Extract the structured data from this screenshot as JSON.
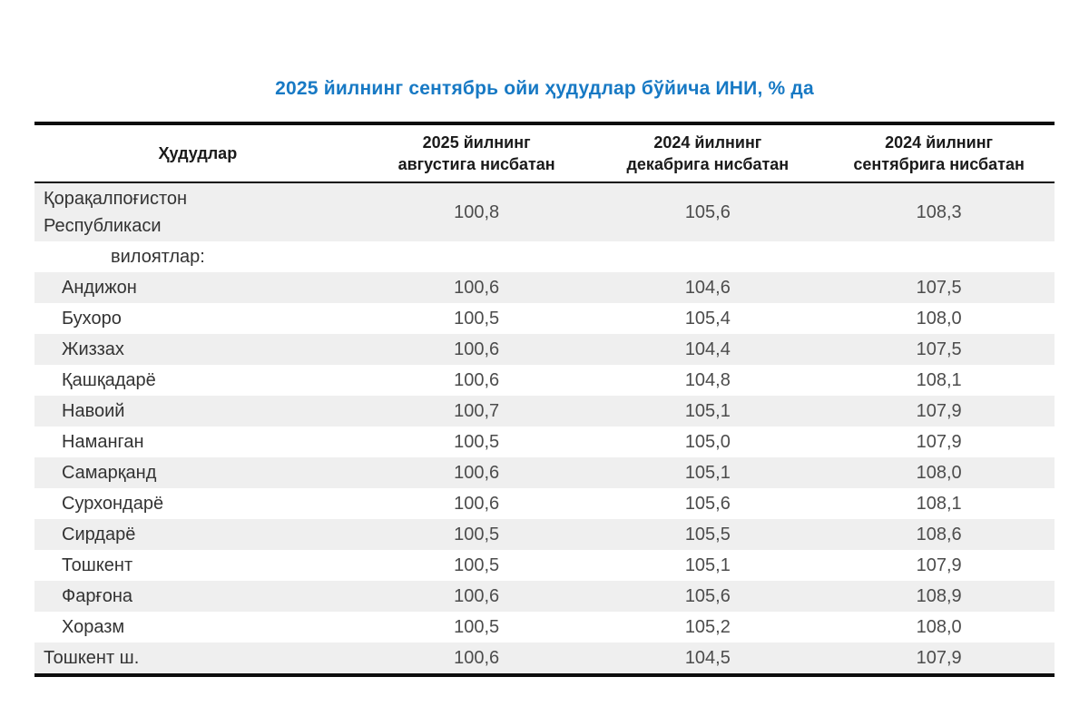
{
  "colors": {
    "title": "#1779c4",
    "stripe": "#efefef",
    "border": "#0d0d0d",
    "region_text": "#333333",
    "value_text": "#4c4c4c"
  },
  "chart_data": {
    "type": "table",
    "title": "2025 йилнинг сентябрь ойи ҳудудлар бўйича ИНИ, % да",
    "columns": [
      "Ҳудудлар",
      "2025 йилнинг августига нисбатан",
      "2024 йилнинг декабрига нисбатан",
      "2024 йилнинг сентябрига нисбатан"
    ],
    "rows": [
      {
        "name": "Қорақалпоғистон\nРеспубликаси",
        "style": "flush",
        "values": [
          "100,8",
          "105,6",
          "108,3"
        ]
      },
      {
        "name": "вилоятлар:",
        "style": "subheader",
        "values": [
          "",
          "",
          ""
        ]
      },
      {
        "name": "Андижон",
        "style": "indent",
        "values": [
          "100,6",
          "104,6",
          "107,5"
        ]
      },
      {
        "name": "Бухоро",
        "style": "indent",
        "values": [
          "100,5",
          "105,4",
          "108,0"
        ]
      },
      {
        "name": "Жиззах",
        "style": "indent",
        "values": [
          "100,6",
          "104,4",
          "107,5"
        ]
      },
      {
        "name": "Қашқадарё",
        "style": "indent",
        "values": [
          "100,6",
          "104,8",
          "108,1"
        ]
      },
      {
        "name": "Навоий",
        "style": "indent",
        "values": [
          "100,7",
          "105,1",
          "107,9"
        ]
      },
      {
        "name": "Наманган",
        "style": "indent",
        "values": [
          "100,5",
          "105,0",
          "107,9"
        ]
      },
      {
        "name": "Самарқанд",
        "style": "indent",
        "values": [
          "100,6",
          "105,1",
          "108,0"
        ]
      },
      {
        "name": "Сурхондарё",
        "style": "indent",
        "values": [
          "100,6",
          "105,6",
          "108,1"
        ]
      },
      {
        "name": "Сирдарё",
        "style": "indent",
        "values": [
          "100,5",
          "105,5",
          "108,6"
        ]
      },
      {
        "name": "Тошкент",
        "style": "indent",
        "values": [
          "100,5",
          "105,1",
          "107,9"
        ]
      },
      {
        "name": "Фарғона",
        "style": "indent",
        "values": [
          "100,6",
          "105,6",
          "108,9"
        ]
      },
      {
        "name": "Хоразм",
        "style": "indent",
        "values": [
          "100,5",
          "105,2",
          "108,0"
        ]
      },
      {
        "name": "Тошкент ш.",
        "style": "flush",
        "values": [
          "100,6",
          "104,5",
          "107,9"
        ]
      }
    ]
  }
}
